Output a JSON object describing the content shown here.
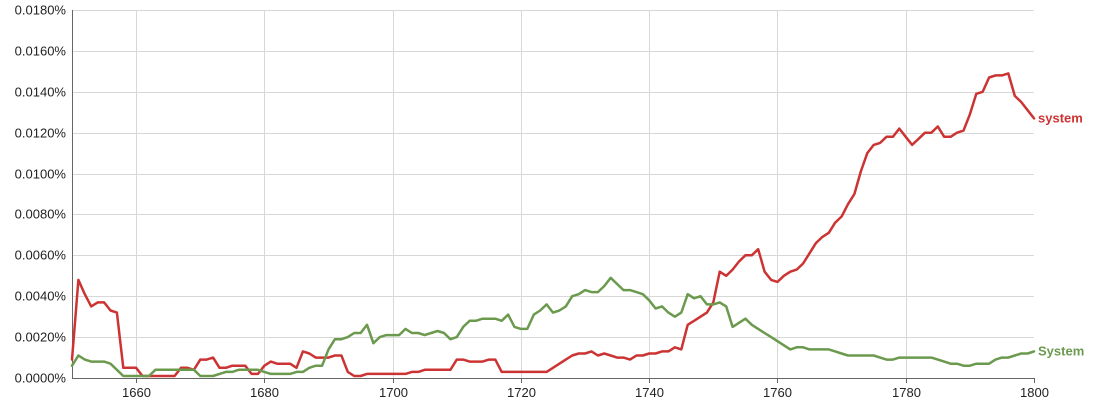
{
  "chart_data": {
    "type": "line",
    "title": "",
    "xlabel": "",
    "ylabel": "",
    "xlim": [
      1650,
      1800
    ],
    "ylim": [
      0,
      0.018
    ],
    "grid": true,
    "legend": "inline-right",
    "x_ticks": [
      1660,
      1680,
      1700,
      1720,
      1740,
      1760,
      1780,
      1800
    ],
    "x_tick_labels": [
      "1660",
      "1680",
      "1700",
      "1720",
      "1740",
      "1760",
      "1780",
      "1800"
    ],
    "y_ticks": [
      0,
      0.002,
      0.004,
      0.006,
      0.008,
      0.01,
      0.012,
      0.014,
      0.016,
      0.018
    ],
    "y_tick_labels": [
      "0.0000%",
      "0.0020%",
      "0.0040%",
      "0.0060%",
      "0.0080%",
      "0.0100%",
      "0.0120%",
      "0.0140%",
      "0.0160%",
      "0.0180%"
    ],
    "series": [
      {
        "name": "system",
        "color": "#cc3333",
        "x": [
          1650,
          1651,
          1652,
          1653,
          1654,
          1655,
          1656,
          1657,
          1658,
          1659,
          1660,
          1661,
          1662,
          1663,
          1664,
          1665,
          1666,
          1667,
          1668,
          1669,
          1670,
          1671,
          1672,
          1673,
          1674,
          1675,
          1676,
          1677,
          1678,
          1679,
          1680,
          1681,
          1682,
          1683,
          1684,
          1685,
          1686,
          1687,
          1688,
          1689,
          1690,
          1691,
          1692,
          1693,
          1694,
          1695,
          1696,
          1697,
          1698,
          1699,
          1700,
          1701,
          1702,
          1703,
          1704,
          1705,
          1706,
          1707,
          1708,
          1709,
          1710,
          1711,
          1712,
          1713,
          1714,
          1715,
          1716,
          1717,
          1718,
          1719,
          1720,
          1721,
          1722,
          1723,
          1724,
          1725,
          1726,
          1727,
          1728,
          1729,
          1730,
          1731,
          1732,
          1733,
          1734,
          1735,
          1736,
          1737,
          1738,
          1739,
          1740,
          1741,
          1742,
          1743,
          1744,
          1745,
          1746,
          1747,
          1748,
          1749,
          1750,
          1751,
          1752,
          1753,
          1754,
          1755,
          1756,
          1757,
          1758,
          1759,
          1760,
          1761,
          1762,
          1763,
          1764,
          1765,
          1766,
          1767,
          1768,
          1769,
          1770,
          1771,
          1772,
          1773,
          1774,
          1775,
          1776,
          1777,
          1778,
          1779,
          1780,
          1781,
          1782,
          1783,
          1784,
          1785,
          1786,
          1787,
          1788,
          1789,
          1790,
          1791,
          1792,
          1793,
          1794,
          1795,
          1796,
          1797,
          1798,
          1799,
          1800
        ],
        "values": [
          0.0009,
          0.0048,
          0.0041,
          0.0035,
          0.0037,
          0.0037,
          0.0033,
          0.0032,
          0.0005,
          0.0005,
          0.0005,
          0.0001,
          0.0001,
          0.0001,
          0.0001,
          0.0001,
          0.0001,
          0.0005,
          0.0005,
          0.0004,
          0.0009,
          0.0009,
          0.001,
          0.0005,
          0.0005,
          0.0006,
          0.0006,
          0.0006,
          0.0002,
          0.0002,
          0.0006,
          0.0008,
          0.0007,
          0.0007,
          0.0007,
          0.0005,
          0.0013,
          0.0012,
          0.001,
          0.001,
          0.001,
          0.0011,
          0.0011,
          0.0003,
          0.0001,
          0.0001,
          0.0002,
          0.0002,
          0.0002,
          0.0002,
          0.0002,
          0.0002,
          0.0002,
          0.0003,
          0.0003,
          0.0004,
          0.0004,
          0.0004,
          0.0004,
          0.0004,
          0.0009,
          0.0009,
          0.0008,
          0.0008,
          0.0008,
          0.0009,
          0.0009,
          0.0003,
          0.0003,
          0.0003,
          0.0003,
          0.0003,
          0.0003,
          0.0003,
          0.0003,
          0.0005,
          0.0007,
          0.0009,
          0.0011,
          0.0012,
          0.0012,
          0.0013,
          0.0011,
          0.0012,
          0.0011,
          0.001,
          0.001,
          0.0009,
          0.0011,
          0.0011,
          0.0012,
          0.0012,
          0.0013,
          0.0013,
          0.0015,
          0.0014,
          0.0026,
          0.0028,
          0.003,
          0.0032,
          0.0037,
          0.0052,
          0.005,
          0.0053,
          0.0057,
          0.006,
          0.006,
          0.0063,
          0.0052,
          0.0048,
          0.0047,
          0.005,
          0.0052,
          0.0053,
          0.0056,
          0.0061,
          0.0066,
          0.0069,
          0.0071,
          0.0076,
          0.0079,
          0.0085,
          0.009,
          0.0101,
          0.011,
          0.0114,
          0.0115,
          0.0118,
          0.0118,
          0.0122,
          0.0118,
          0.0114,
          0.0117,
          0.012,
          0.012,
          0.0123,
          0.0118,
          0.0118,
          0.012,
          0.0121,
          0.0129,
          0.0139,
          0.014,
          0.0147,
          0.0148,
          0.0148,
          0.0149,
          0.0138,
          0.0135,
          0.0131,
          0.0127
        ]
      },
      {
        "name": "System",
        "color": "#6b9a4e",
        "x": [
          1650,
          1651,
          1652,
          1653,
          1654,
          1655,
          1656,
          1657,
          1658,
          1659,
          1660,
          1661,
          1662,
          1663,
          1664,
          1665,
          1666,
          1667,
          1668,
          1669,
          1670,
          1671,
          1672,
          1673,
          1674,
          1675,
          1676,
          1677,
          1678,
          1679,
          1680,
          1681,
          1682,
          1683,
          1684,
          1685,
          1686,
          1687,
          1688,
          1689,
          1690,
          1691,
          1692,
          1693,
          1694,
          1695,
          1696,
          1697,
          1698,
          1699,
          1700,
          1701,
          1702,
          1703,
          1704,
          1705,
          1706,
          1707,
          1708,
          1709,
          1710,
          1711,
          1712,
          1713,
          1714,
          1715,
          1716,
          1717,
          1718,
          1719,
          1720,
          1721,
          1722,
          1723,
          1724,
          1725,
          1726,
          1727,
          1728,
          1729,
          1730,
          1731,
          1732,
          1733,
          1734,
          1735,
          1736,
          1737,
          1738,
          1739,
          1740,
          1741,
          1742,
          1743,
          1744,
          1745,
          1746,
          1747,
          1748,
          1749,
          1750,
          1751,
          1752,
          1753,
          1754,
          1755,
          1756,
          1757,
          1758,
          1759,
          1760,
          1761,
          1762,
          1763,
          1764,
          1765,
          1766,
          1767,
          1768,
          1769,
          1770,
          1771,
          1772,
          1773,
          1774,
          1775,
          1776,
          1777,
          1778,
          1779,
          1780,
          1781,
          1782,
          1783,
          1784,
          1785,
          1786,
          1787,
          1788,
          1789,
          1790,
          1791,
          1792,
          1793,
          1794,
          1795,
          1796,
          1797,
          1798,
          1799,
          1800
        ],
        "values": [
          0.0006,
          0.0011,
          0.0009,
          0.0008,
          0.0008,
          0.0008,
          0.0007,
          0.0004,
          0.0001,
          0.0001,
          0.0001,
          0.0001,
          0.0001,
          0.0004,
          0.0004,
          0.0004,
          0.0004,
          0.0004,
          0.0004,
          0.0004,
          0.0001,
          0.0001,
          0.0001,
          0.0002,
          0.0003,
          0.0003,
          0.0004,
          0.0004,
          0.0004,
          0.0004,
          0.0003,
          0.0002,
          0.0002,
          0.0002,
          0.0002,
          0.0003,
          0.0003,
          0.0005,
          0.0006,
          0.0006,
          0.0014,
          0.0019,
          0.0019,
          0.002,
          0.0022,
          0.0022,
          0.0026,
          0.0017,
          0.002,
          0.0021,
          0.0021,
          0.0021,
          0.0024,
          0.0022,
          0.0022,
          0.0021,
          0.0022,
          0.0023,
          0.0022,
          0.0019,
          0.002,
          0.0025,
          0.0028,
          0.0028,
          0.0029,
          0.0029,
          0.0029,
          0.0028,
          0.0031,
          0.0025,
          0.0024,
          0.0024,
          0.0031,
          0.0033,
          0.0036,
          0.0032,
          0.0033,
          0.0035,
          0.004,
          0.0041,
          0.0043,
          0.0042,
          0.0042,
          0.0045,
          0.0049,
          0.0046,
          0.0043,
          0.0043,
          0.0042,
          0.0041,
          0.0038,
          0.0034,
          0.0035,
          0.0032,
          0.003,
          0.0032,
          0.0041,
          0.0039,
          0.004,
          0.0036,
          0.0036,
          0.0037,
          0.0035,
          0.0025,
          0.0027,
          0.0029,
          0.0026,
          0.0024,
          0.0022,
          0.002,
          0.0018,
          0.0016,
          0.0014,
          0.0015,
          0.0015,
          0.0014,
          0.0014,
          0.0014,
          0.0014,
          0.0013,
          0.0012,
          0.0011,
          0.0011,
          0.0011,
          0.0011,
          0.0011,
          0.001,
          0.0009,
          0.0009,
          0.001,
          0.001,
          0.001,
          0.001,
          0.001,
          0.001,
          0.0009,
          0.0008,
          0.0007,
          0.0007,
          0.0006,
          0.0006,
          0.0007,
          0.0007,
          0.0007,
          0.0009,
          0.001,
          0.001,
          0.0011,
          0.0012,
          0.0012,
          0.0013
        ]
      }
    ]
  }
}
